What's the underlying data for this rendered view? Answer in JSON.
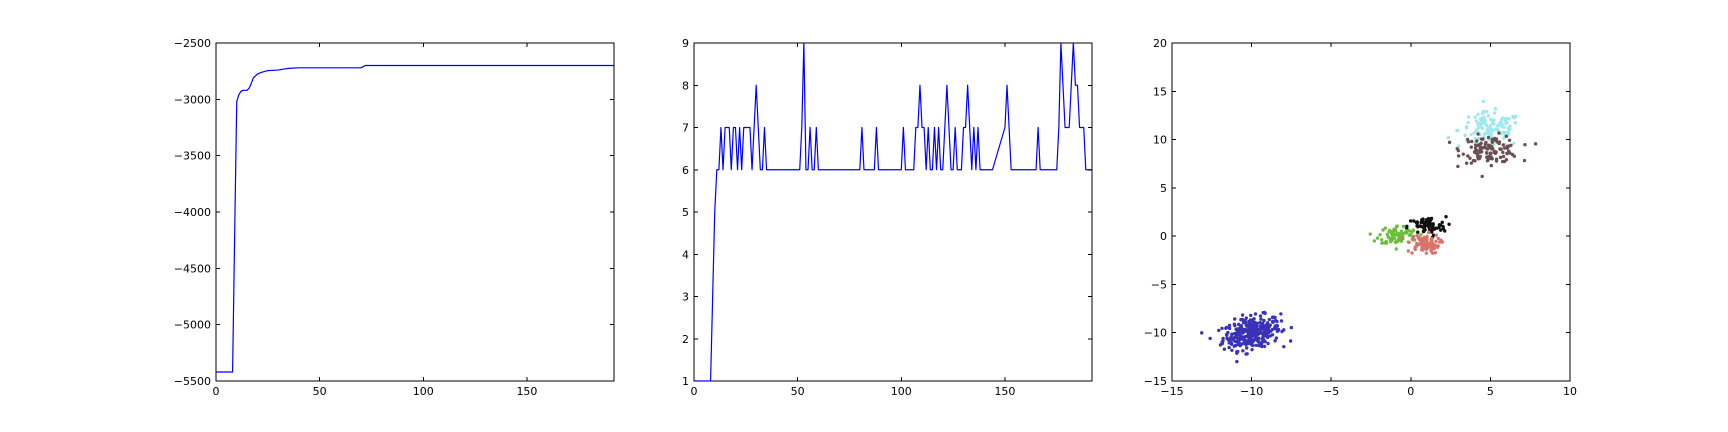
{
  "chart_data": [
    {
      "type": "line",
      "xlim": [
        0,
        192
      ],
      "ylim": [
        -5500,
        -2500
      ],
      "xticks": [
        0,
        50,
        100,
        150
      ],
      "yticks": [
        -5500,
        -5000,
        -4500,
        -4000,
        -3500,
        -3000,
        -2500
      ],
      "grid": false,
      "color": "#0000ff",
      "x": [
        0,
        8,
        9,
        10,
        11,
        12,
        13,
        14,
        15,
        16,
        17,
        18,
        20,
        22,
        25,
        30,
        33,
        35,
        40,
        50,
        60,
        65,
        70,
        72,
        75,
        85,
        90,
        100,
        110,
        130,
        150,
        170,
        192
      ],
      "y": [
        -5420,
        -5420,
        -4200,
        -3020,
        -2960,
        -2930,
        -2920,
        -2920,
        -2920,
        -2900,
        -2860,
        -2810,
        -2775,
        -2760,
        -2745,
        -2740,
        -2730,
        -2725,
        -2720,
        -2720,
        -2720,
        -2720,
        -2720,
        -2700,
        -2700,
        -2700,
        -2700,
        -2700,
        -2700,
        -2700,
        -2700,
        -2700,
        -2700
      ]
    },
    {
      "type": "line",
      "xlim": [
        0,
        192
      ],
      "ylim": [
        1,
        9
      ],
      "xticks": [
        0,
        50,
        100,
        150
      ],
      "yticks": [
        1,
        2,
        3,
        4,
        5,
        6,
        7,
        8,
        9
      ],
      "grid": false,
      "color": "#0000ff",
      "x": [
        0,
        8,
        9,
        10,
        11,
        12,
        13,
        14,
        15,
        16,
        17,
        18,
        19,
        20,
        21,
        22,
        23,
        24,
        25,
        26,
        27,
        28,
        29,
        30,
        31,
        32,
        33,
        34,
        35,
        36,
        37,
        38,
        39,
        40,
        41,
        42,
        50,
        51,
        52,
        53,
        54,
        55,
        56,
        57,
        58,
        59,
        60,
        61,
        62,
        63,
        80,
        81,
        82,
        87,
        88,
        89,
        100,
        101,
        102,
        106,
        107,
        108,
        109,
        110,
        111,
        112,
        113,
        114,
        115,
        116,
        117,
        118,
        119,
        120,
        121,
        122,
        123,
        124,
        125,
        126,
        127,
        128,
        129,
        130,
        131,
        132,
        133,
        134,
        135,
        136,
        137,
        138,
        139,
        140,
        141,
        142,
        143,
        144,
        150,
        151,
        152,
        153,
        154,
        155,
        165,
        166,
        167,
        175,
        176,
        177,
        178,
        179,
        180,
        181,
        182,
        183,
        184,
        185,
        186,
        187,
        188,
        189,
        190,
        191,
        192
      ],
      "y": [
        1,
        1,
        3,
        5,
        6,
        6,
        7,
        6,
        7,
        7,
        7,
        6,
        7,
        7,
        6,
        7,
        6,
        7,
        7,
        7,
        7,
        6,
        7,
        8,
        7,
        6,
        6,
        7,
        6,
        6,
        6,
        6,
        6,
        6,
        6,
        6,
        6,
        6,
        7,
        9,
        6,
        6,
        7,
        6,
        6,
        7,
        6,
        6,
        6,
        6,
        6,
        7,
        6,
        6,
        7,
        6,
        6,
        7,
        6,
        6,
        7,
        7,
        8,
        7,
        7,
        6,
        7,
        6,
        6,
        7,
        6,
        7,
        6,
        6,
        7,
        8,
        7,
        6,
        6,
        7,
        6,
        6,
        6,
        7,
        7,
        8,
        7,
        6,
        7,
        6,
        7,
        6,
        6,
        6,
        6,
        6,
        6,
        6,
        7,
        8,
        7,
        6,
        6,
        6,
        6,
        7,
        6,
        6,
        7,
        9,
        8,
        7,
        7,
        7,
        8,
        9,
        8,
        8,
        7,
        7,
        7,
        6,
        6,
        6,
        6
      ]
    },
    {
      "type": "scatter",
      "xlim": [
        -15,
        10
      ],
      "ylim": [
        -15,
        20
      ],
      "xticks": [
        -15,
        -10,
        -5,
        0,
        5,
        10
      ],
      "yticks": [
        -15,
        -10,
        -5,
        0,
        5,
        10,
        15,
        20
      ],
      "grid": false,
      "clusters": [
        {
          "color": "#3a32b8",
          "center": [
            -10,
            -10
          ],
          "count": 320,
          "spread": [
            0.9,
            0.8
          ],
          "tilt": 0.3
        },
        {
          "color": "#9ee8ef",
          "center": [
            5,
            11
          ],
          "count": 120,
          "spread": [
            1.0,
            0.9
          ],
          "tilt": 0
        },
        {
          "color": "#6b4f52",
          "center": [
            5,
            9
          ],
          "count": 120,
          "spread": [
            0.9,
            0.7
          ],
          "tilt": 0
        },
        {
          "color": "#111111",
          "center": [
            1,
            1
          ],
          "count": 70,
          "spread": [
            0.6,
            0.5
          ],
          "tilt": 0
        },
        {
          "color": "#6bbf3a",
          "center": [
            -0.8,
            0.1
          ],
          "count": 80,
          "spread": [
            0.6,
            0.5
          ],
          "tilt": 0
        },
        {
          "color": "#d8736a",
          "center": [
            0.8,
            -0.8
          ],
          "count": 80,
          "spread": [
            0.5,
            0.5
          ],
          "tilt": 0
        }
      ]
    }
  ]
}
